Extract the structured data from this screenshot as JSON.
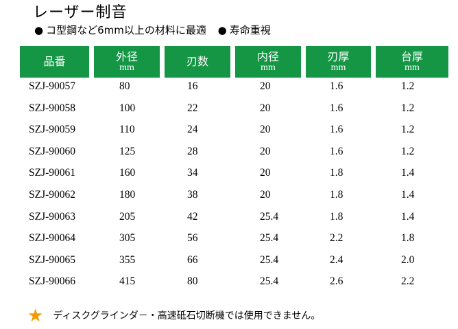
{
  "title": "レーザー制音",
  "features": [
    {
      "bullet": "●",
      "text": "コ型鋼など6mm以上の材料に最適"
    },
    {
      "bullet": "●",
      "text": "寿命重視"
    }
  ],
  "table": {
    "header_color": "#149645",
    "columns": [
      {
        "label": "品番",
        "unit": ""
      },
      {
        "label": "外径",
        "unit": "mm"
      },
      {
        "label": "刃数",
        "unit": ""
      },
      {
        "label": "内径",
        "unit": "mm"
      },
      {
        "label": "刃厚",
        "unit": "mm"
      },
      {
        "label": "台厚",
        "unit": "mm"
      }
    ],
    "rows": [
      [
        "SZJ-90057",
        "80",
        "16",
        "20",
        "1.6",
        "1.2"
      ],
      [
        "SZJ-90058",
        "100",
        "22",
        "20",
        "1.6",
        "1.2"
      ],
      [
        "SZJ-90059",
        "110",
        "24",
        "20",
        "1.6",
        "1.2"
      ],
      [
        "SZJ-90060",
        "125",
        "28",
        "20",
        "1.6",
        "1.2"
      ],
      [
        "SZJ-90061",
        "160",
        "34",
        "20",
        "1.8",
        "1.4"
      ],
      [
        "SZJ-90062",
        "180",
        "38",
        "20",
        "1.8",
        "1.4"
      ],
      [
        "SZJ-90063",
        "205",
        "42",
        "25.4",
        "1.8",
        "1.4"
      ],
      [
        "SZJ-90064",
        "305",
        "56",
        "25.4",
        "2.2",
        "1.8"
      ],
      [
        "SZJ-90065",
        "355",
        "66",
        "25.4",
        "2.4",
        "2.0"
      ],
      [
        "SZJ-90066",
        "415",
        "80",
        "25.4",
        "2.6",
        "2.2"
      ]
    ]
  },
  "note": {
    "icon": "star-icon",
    "icon_color": "#f39a00",
    "text": "ディスクグラインダ－・高速砥石切断機では使用できません。"
  }
}
